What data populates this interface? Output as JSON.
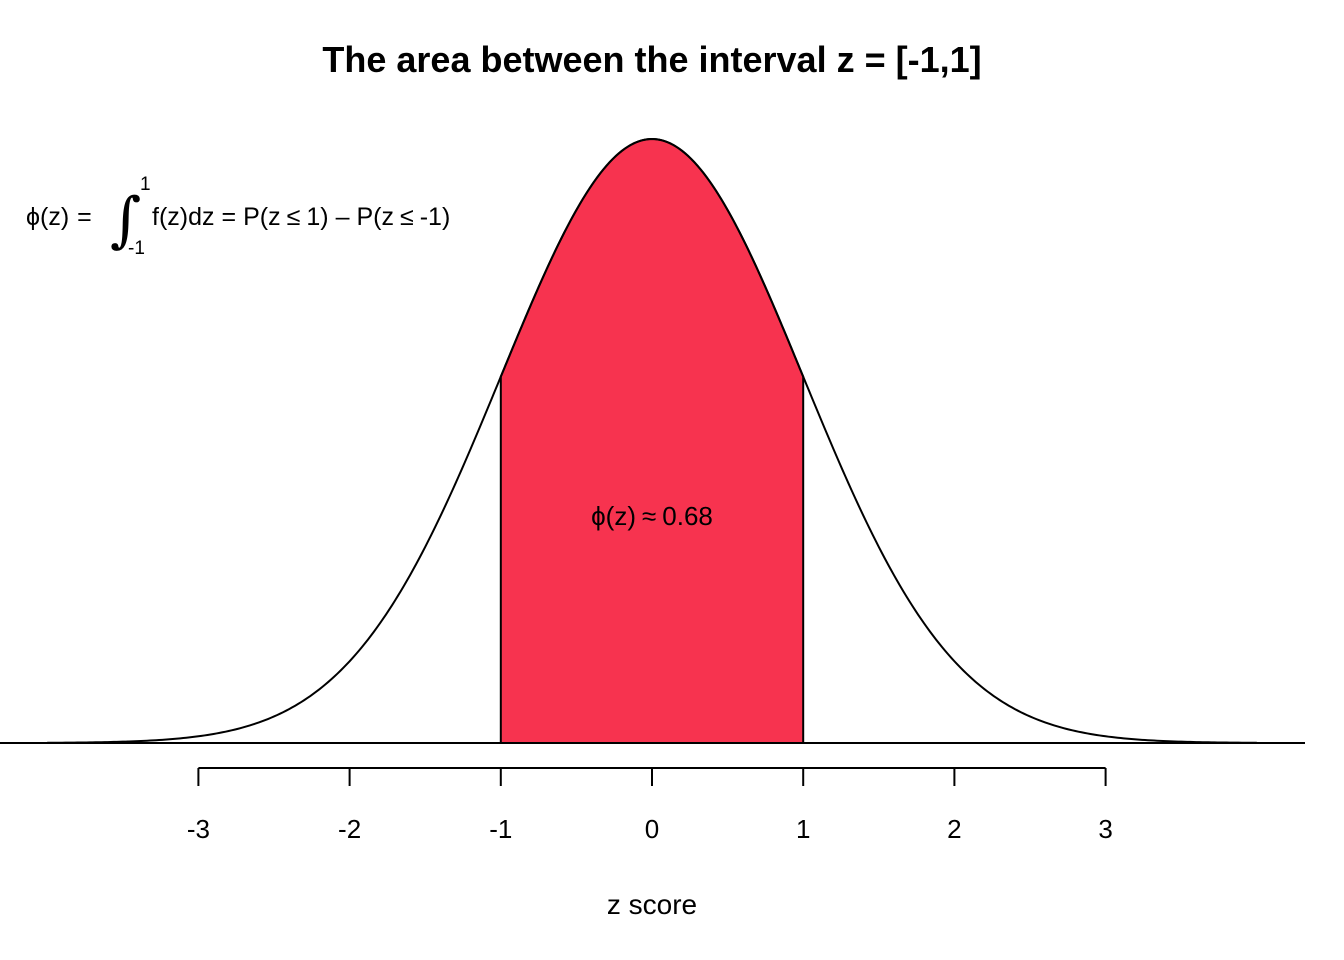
{
  "chart_data": {
    "type": "area",
    "title": "The area between the interval z = [-1,1]",
    "xlabel": "z score",
    "ylabel": "",
    "xlim": [
      -4.3,
      4.3
    ],
    "ylim": [
      0,
      0.4
    ],
    "x_ticks": [
      -3,
      -2,
      -1,
      0,
      1,
      2,
      3
    ],
    "x_tick_labels": [
      "-3",
      "-2",
      "-1",
      "0",
      "1",
      "2",
      "3"
    ],
    "series": [
      {
        "kind": "density-curve",
        "distribution": "standard-normal",
        "mean": 0,
        "sd": 1,
        "x_range": [
          -4,
          4
        ]
      }
    ],
    "shaded_region": {
      "x_from": -1,
      "x_to": 1,
      "area": 0.68,
      "color": "#F7334F"
    },
    "curve_color": "#000000",
    "grid": false,
    "legend": "none",
    "annotations": {
      "area_label": {
        "phi": "ϕ",
        "arg": "(z)",
        "approx": "≈",
        "value": "0.68"
      },
      "formula": {
        "lhs_phi": "ϕ",
        "lhs_arg": "(z)",
        "equals": "=",
        "integral": "∫",
        "upper_limit": "1",
        "lower_limit": "-1",
        "integrand": "f(z)dz",
        "equals2": "=",
        "prob1_open": "P(z",
        "leq": "≤",
        "prob1_close": "1)",
        "minus": "–",
        "prob2_open": "P(z",
        "leq2": "≤",
        "prob2_close": "-1)"
      }
    }
  }
}
